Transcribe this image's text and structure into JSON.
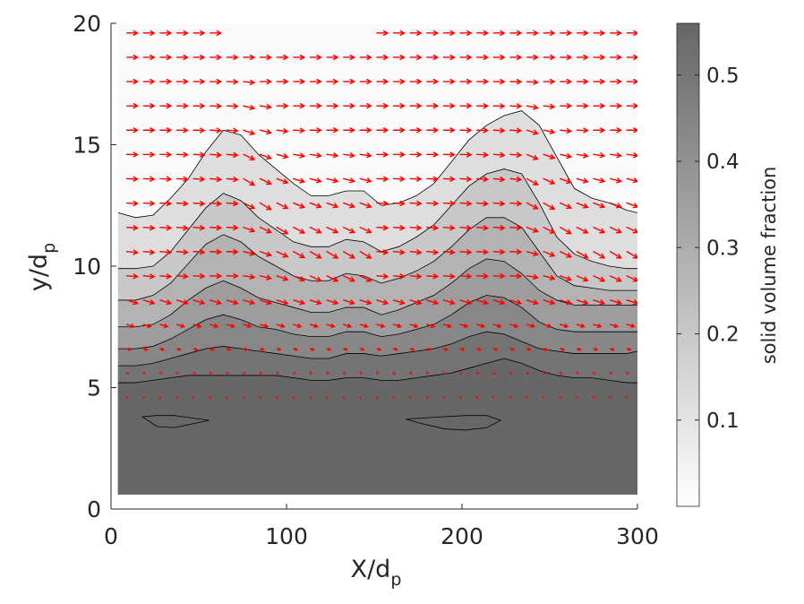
{
  "chart_data": {
    "type": "contour",
    "title": "",
    "xlabel": "X/d",
    "xlabel_sub": "p",
    "ylabel": "y/d",
    "ylabel_sub": "p",
    "xlim": [
      0,
      300
    ],
    "ylim": [
      0,
      20
    ],
    "x_ticks": [
      0,
      100,
      200,
      300
    ],
    "y_ticks": [
      0,
      5,
      10,
      15,
      20
    ],
    "colorbar": {
      "label": "solid volume fraction",
      "range": [
        0.0,
        0.56
      ],
      "ticks": [
        0.1,
        0.2,
        0.3,
        0.4,
        0.5
      ],
      "color_low": "#ffffff",
      "color_high": "#666666"
    },
    "data_extent": {
      "x": [
        4,
        300
      ],
      "y": [
        0.6,
        20
      ]
    },
    "contour_levels": [
      0.08,
      0.16,
      0.24,
      0.32,
      0.4,
      0.48
    ],
    "contour_x": [
      4,
      14,
      24,
      34,
      44,
      54,
      64,
      74,
      84,
      94,
      104,
      114,
      124,
      134,
      144,
      154,
      164,
      174,
      184,
      194,
      204,
      214,
      224,
      234,
      244,
      254,
      264,
      274,
      284,
      294,
      300
    ],
    "contours": [
      {
        "level": 0.08,
        "y": [
          12.2,
          12.0,
          12.1,
          12.8,
          13.6,
          14.7,
          15.6,
          15.4,
          14.6,
          14.0,
          13.4,
          12.9,
          12.9,
          13.1,
          13.1,
          12.5,
          12.6,
          12.9,
          13.4,
          14.3,
          15.2,
          15.8,
          16.2,
          16.4,
          15.8,
          14.5,
          13.2,
          12.8,
          12.6,
          12.3,
          12.2
        ]
      },
      {
        "level": 0.16,
        "y": [
          9.9,
          9.9,
          10.0,
          10.6,
          11.5,
          12.4,
          13.0,
          12.7,
          12.0,
          11.5,
          11.0,
          10.8,
          10.8,
          11.1,
          11.0,
          10.6,
          10.8,
          11.2,
          11.7,
          12.5,
          13.3,
          13.8,
          14.0,
          13.8,
          12.6,
          11.2,
          10.5,
          10.2,
          10.0,
          9.9,
          9.9
        ]
      },
      {
        "level": 0.24,
        "y": [
          8.6,
          8.6,
          8.8,
          9.3,
          10.1,
          10.9,
          11.3,
          11.0,
          10.4,
          10.0,
          9.6,
          9.4,
          9.4,
          9.7,
          9.6,
          9.3,
          9.5,
          9.8,
          10.2,
          10.8,
          11.5,
          12.0,
          12.0,
          11.6,
          10.6,
          9.6,
          9.2,
          9.1,
          9.0,
          9.0,
          9.0
        ]
      },
      {
        "level": 0.32,
        "y": [
          7.5,
          7.5,
          7.6,
          8.0,
          8.6,
          9.1,
          9.4,
          9.1,
          8.7,
          8.5,
          8.3,
          8.1,
          8.1,
          8.3,
          8.3,
          8.0,
          8.2,
          8.5,
          8.8,
          9.3,
          9.9,
          10.3,
          10.2,
          9.7,
          9.0,
          8.6,
          8.4,
          8.4,
          8.4,
          8.4,
          8.4
        ]
      },
      {
        "level": 0.4,
        "y": [
          6.6,
          6.6,
          6.7,
          7.0,
          7.4,
          7.8,
          8.0,
          7.8,
          7.5,
          7.4,
          7.2,
          7.1,
          7.1,
          7.3,
          7.3,
          7.1,
          7.2,
          7.4,
          7.6,
          8.0,
          8.5,
          8.8,
          8.7,
          8.3,
          7.7,
          7.4,
          7.3,
          7.3,
          7.3,
          7.3,
          7.3
        ]
      },
      {
        "level": 0.48,
        "y": [
          5.9,
          5.9,
          6.0,
          6.2,
          6.4,
          6.6,
          6.7,
          6.6,
          6.5,
          6.4,
          6.3,
          6.2,
          6.2,
          6.4,
          6.4,
          6.3,
          6.4,
          6.5,
          6.6,
          6.8,
          7.1,
          7.3,
          7.2,
          6.9,
          6.6,
          6.5,
          6.4,
          6.4,
          6.4,
          6.4,
          6.5
        ]
      },
      {
        "level": 0.52,
        "y": [
          5.2,
          5.2,
          5.3,
          5.4,
          5.5,
          5.5,
          5.5,
          5.5,
          5.5,
          5.5,
          5.4,
          5.3,
          5.3,
          5.4,
          5.4,
          5.3,
          5.3,
          5.4,
          5.5,
          5.6,
          5.8,
          6.0,
          6.2,
          6.0,
          5.7,
          5.5,
          5.4,
          5.4,
          5.3,
          5.2,
          5.2
        ]
      }
    ],
    "closed_contours": [
      {
        "level": 0.555,
        "x": [
          18,
          26,
          36,
          46,
          56,
          46,
          36,
          26
        ],
        "y": [
          3.8,
          3.85,
          3.85,
          3.75,
          3.65,
          3.5,
          3.35,
          3.4
        ]
      },
      {
        "level": 0.555,
        "x": [
          168,
          178,
          190,
          202,
          214,
          222,
          214,
          202,
          190,
          178
        ],
        "y": [
          3.7,
          3.75,
          3.8,
          3.85,
          3.85,
          3.65,
          3.35,
          3.25,
          3.3,
          3.5
        ]
      }
    ],
    "vectors": {
      "color": "#ff0000",
      "x": [
        9,
        18.5,
        28,
        37.5,
        47,
        56.5,
        66,
        75.5,
        85,
        94.5,
        104,
        113.5,
        123,
        132.5,
        142,
        151.5,
        161,
        170.5,
        180,
        189.5,
        199,
        208.5,
        218,
        227.5,
        237,
        246.5,
        256,
        265.5,
        275,
        284.5,
        294
      ],
      "y": [
        4.6,
        5.6,
        6.6,
        7.6,
        8.6,
        9.6,
        10.6,
        11.6,
        12.6,
        13.6,
        14.6,
        15.6,
        16.6,
        17.6,
        18.6,
        19.6
      ],
      "note": "velocity arrows: near-horizontal to the right in the upper region, tilting downward to the right of the bumps, shrinking to dots in the dense bed"
    }
  }
}
